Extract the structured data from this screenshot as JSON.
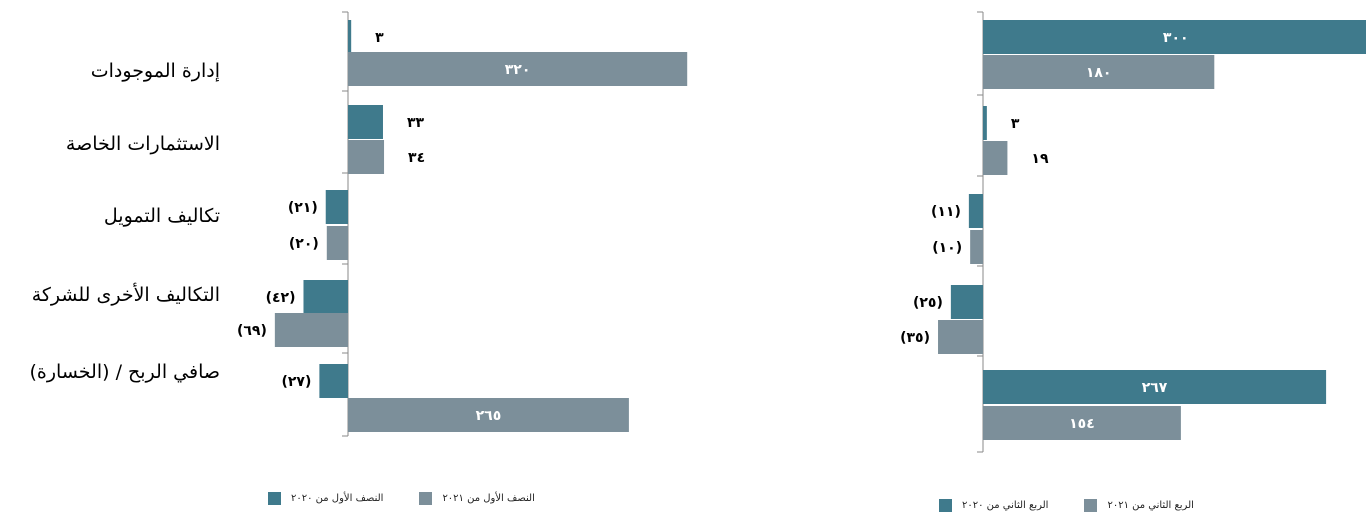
{
  "categories": [
    "إدارة الموجودات",
    "الاستثمارات الخاصة",
    "تكاليف التمويل",
    "التكاليف الأخرى للشركة",
    "صافي الربح / (الخسارة)"
  ],
  "colors": {
    "series_2020": "#3f7a8c",
    "series_2021": "#7c8f9a",
    "axis": "#8a8a8a",
    "inside_label": "#ffffff",
    "outside_label": "#000000"
  },
  "chart_data": [
    {
      "type": "bar",
      "orientation": "horizontal",
      "categories": [
        "إدارة الموجودات",
        "الاستثمارات الخاصة",
        "تكاليف التمويل",
        "التكاليف الأخرى للشركة",
        "صافي الربح / (الخسارة)"
      ],
      "series": [
        {
          "name": "النصف الأول من ٢٠٢٠",
          "values": [
            3,
            33,
            -21,
            -42,
            -27
          ],
          "labels": [
            "٣",
            "٣٣",
            "(٢١)",
            "(٤٢)",
            "(٢٧)"
          ]
        },
        {
          "name": "النصف الأول من ٢٠٢١",
          "values": [
            320,
            34,
            -20,
            -69,
            265
          ],
          "labels": [
            "٣٢٠",
            "٣٤",
            "(٢٠)",
            "(٦٩)",
            "٢٦٥"
          ]
        }
      ],
      "legend_position": "bottom",
      "grid": false
    },
    {
      "type": "bar",
      "orientation": "horizontal",
      "categories": [
        "إدارة الموجودات",
        "الاستثمارات الخاصة",
        "تكاليف التمويل",
        "التكاليف الأخرى للشركة",
        "صافي الربح / (الخسارة)"
      ],
      "series": [
        {
          "name": "الربع الثاني من ٢٠٢٠",
          "values": [
            300,
            3,
            -11,
            -25,
            267
          ],
          "labels": [
            "٣٠٠",
            "٣",
            "(١١)",
            "(٢٥)",
            "٢٦٧"
          ]
        },
        {
          "name": "الربع الثاني من ٢٠٢١",
          "values": [
            180,
            19,
            -10,
            -35,
            154
          ],
          "labels": [
            "١٨٠",
            "١٩",
            "(١٠)",
            "(٣٥)",
            "١٥٤"
          ]
        }
      ],
      "legend_position": "bottom",
      "grid": false
    }
  ]
}
